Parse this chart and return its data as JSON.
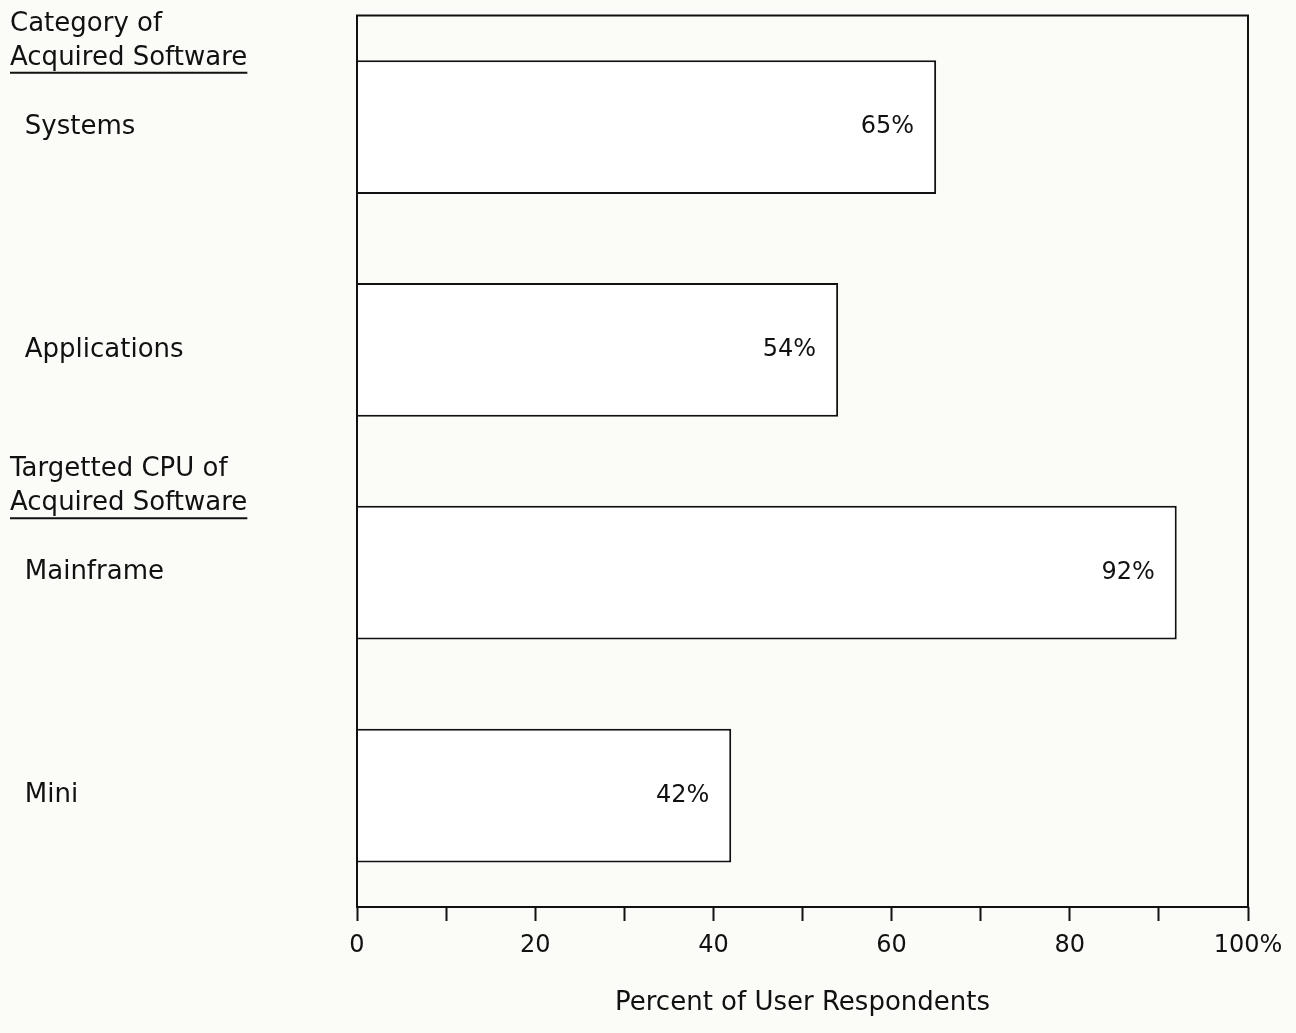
{
  "chart_data": {
    "type": "bar",
    "orientation": "horizontal",
    "xlabel": "Percent of User Respondents",
    "categories": [
      "Systems",
      "Applications",
      "Mainframe",
      "Mini"
    ],
    "values": [
      65,
      54,
      92,
      42
    ],
    "value_labels": [
      "65%",
      "54%",
      "92%",
      "42%"
    ],
    "color": "#ffffff",
    "annotations": [
      "Category of\nAcquired Software",
      "Targetted CPU of\nAcquired Software"
    ],
    "xlim": [
      0,
      100
    ],
    "xticks": [
      0,
      {
        "value": 10,
        "label": null
      },
      20,
      {
        "value": 30,
        "label": null
      },
      40,
      {
        "value": 50,
        "label": null
      },
      60,
      {
        "value": 70,
        "label": null
      },
      80,
      {
        "value": 90,
        "label": null
      },
      {
        "value": 100,
        "label": "100%"
      }
    ],
    "grid": false,
    "legend": false
  }
}
